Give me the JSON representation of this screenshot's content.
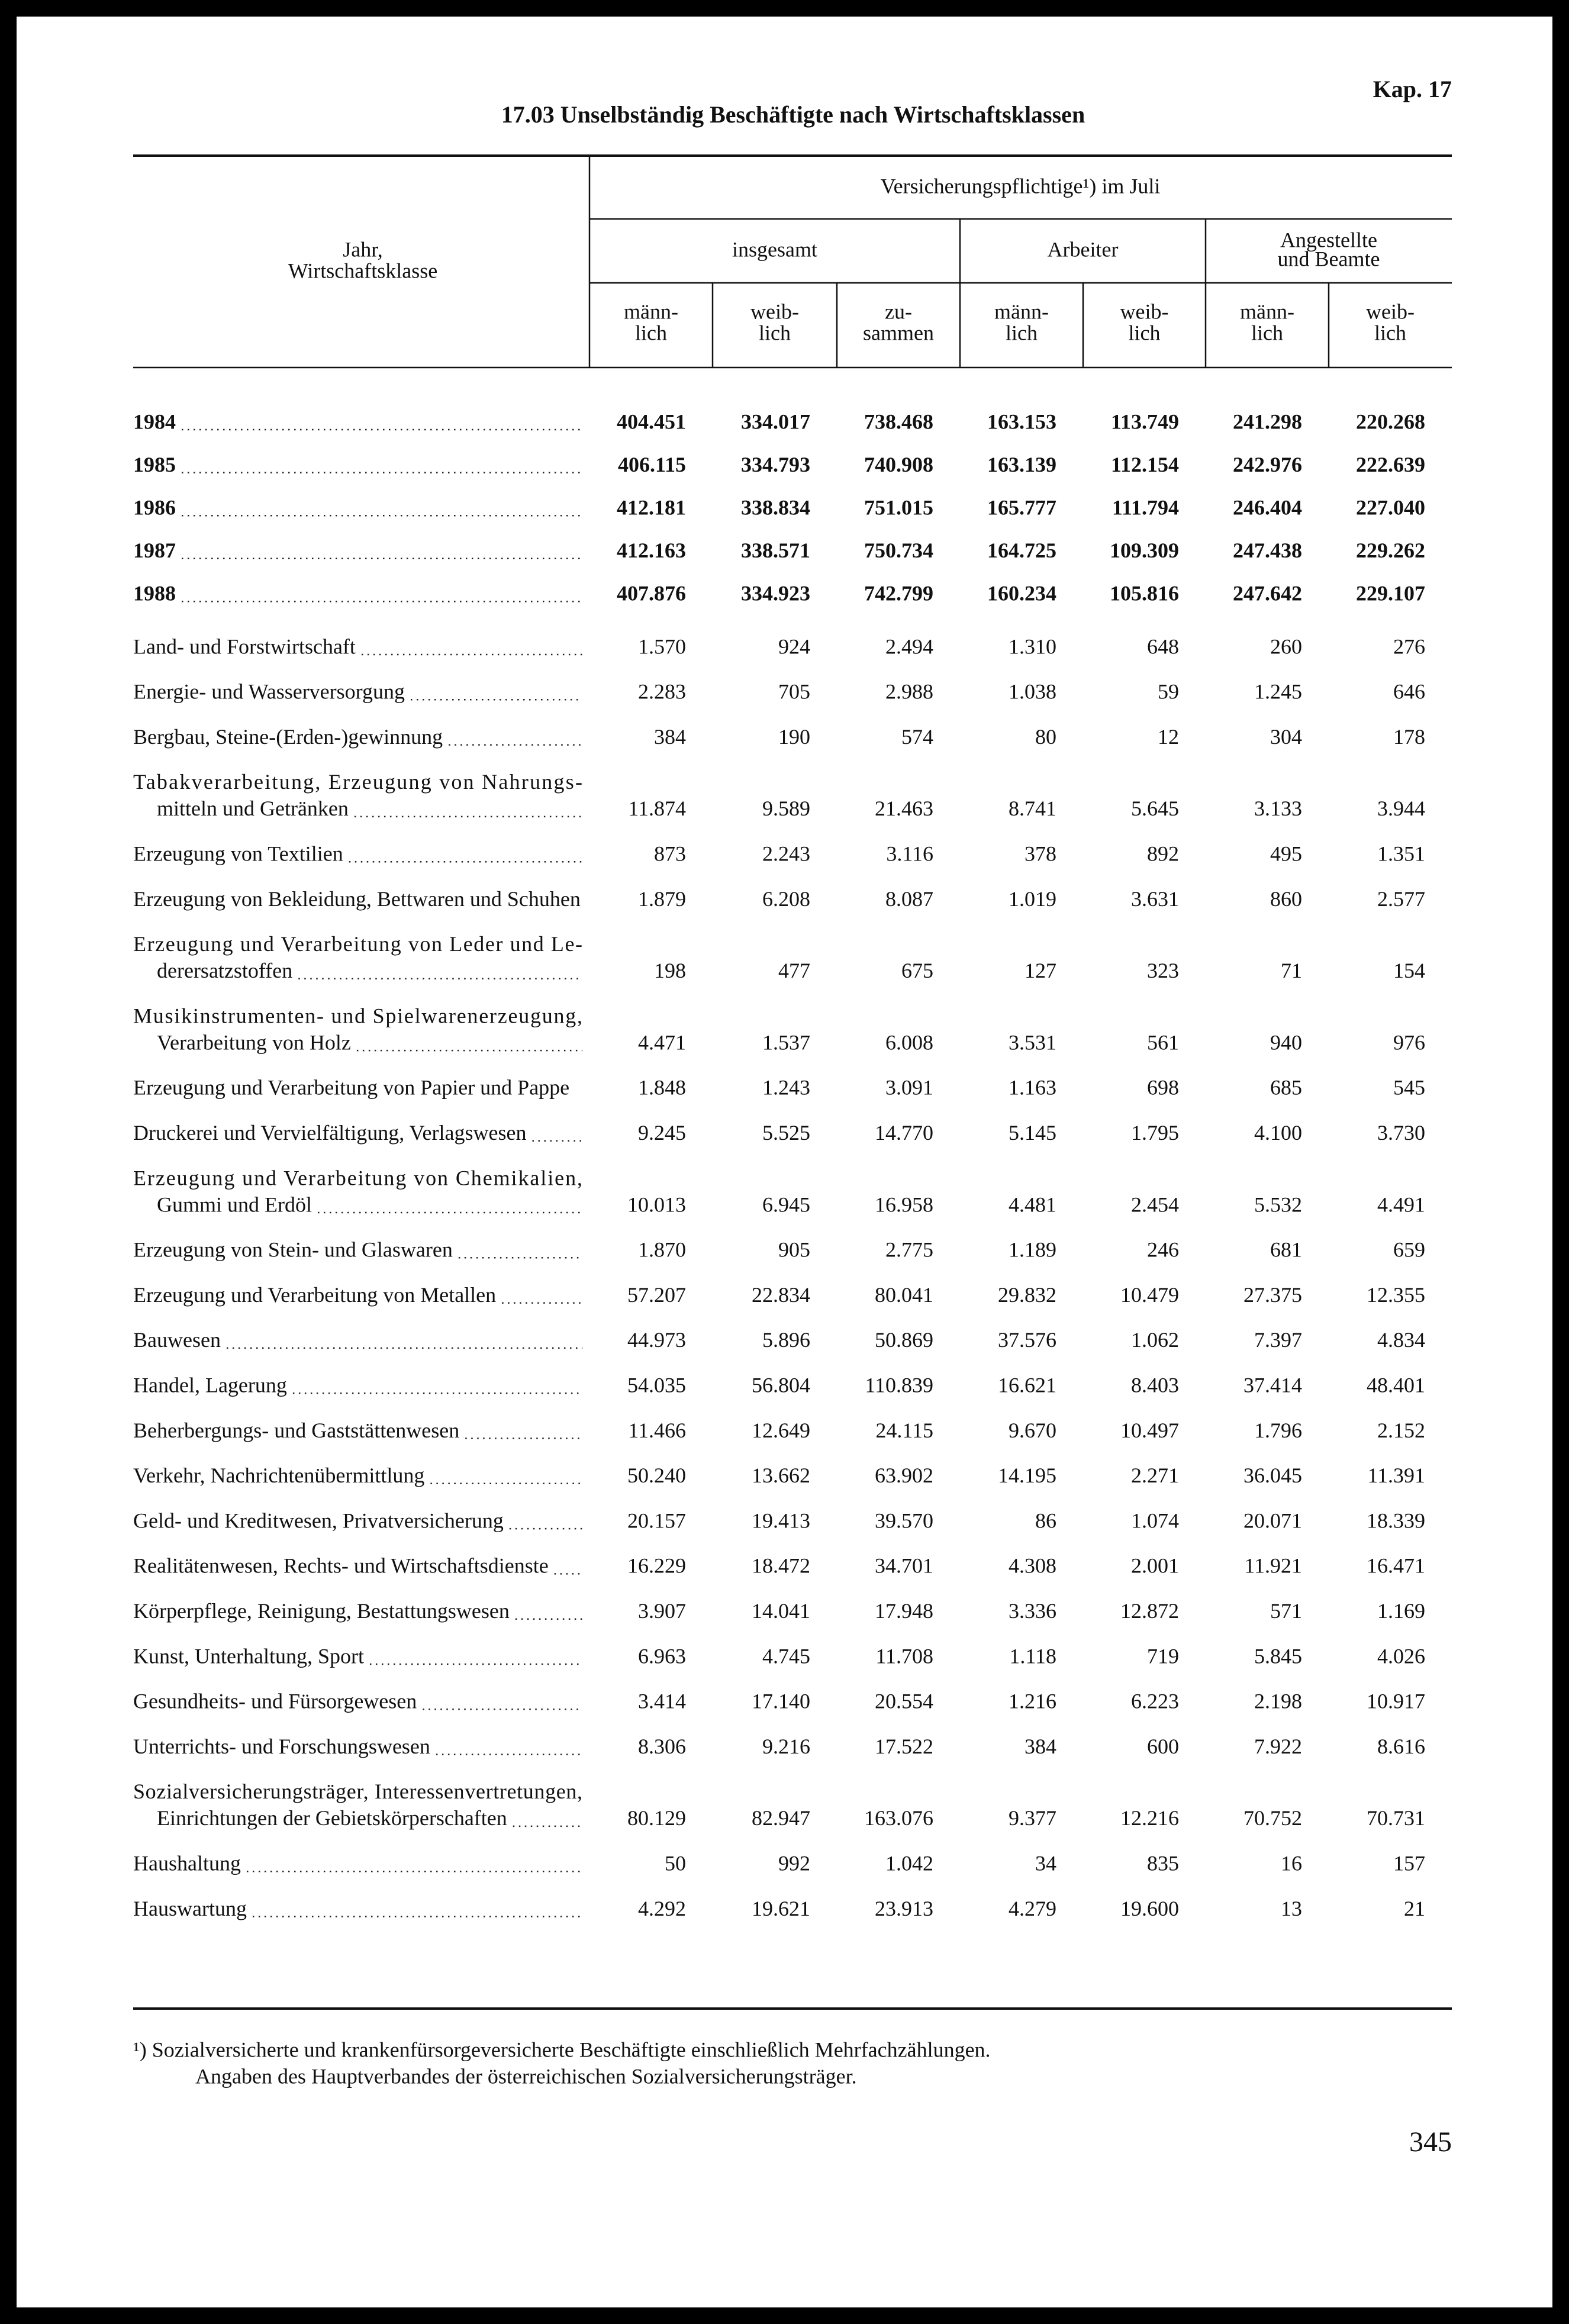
{
  "header": {
    "chapter": "Kap. 17",
    "title": "17.03 Unselbständig Beschäftigte nach Wirtschaftsklassen"
  },
  "table": {
    "stub_header": [
      "Jahr,",
      "Wirtschaftsklasse"
    ],
    "top_header": "Versicherungspflichtige¹) im Juli",
    "groups": [
      [
        "insgesamt"
      ],
      [
        "Arbeiter"
      ],
      [
        "Angestellte",
        "und Beamte"
      ]
    ],
    "columns": [
      [
        "männ-",
        "lich"
      ],
      [
        "weib-",
        "lich"
      ],
      [
        "zu-",
        "sammen"
      ],
      [
        "männ-",
        "lich"
      ],
      [
        "weib-",
        "lich"
      ],
      [
        "männ-",
        "lich"
      ],
      [
        "weib-",
        "lich"
      ]
    ],
    "year_rows": [
      {
        "label": [
          "1984"
        ],
        "values": [
          "404.451",
          "334.017",
          "738.468",
          "163.153",
          "113.749",
          "241.298",
          "220.268"
        ]
      },
      {
        "label": [
          "1985"
        ],
        "values": [
          "406.115",
          "334.793",
          "740.908",
          "163.139",
          "112.154",
          "242.976",
          "222.639"
        ]
      },
      {
        "label": [
          "1986"
        ],
        "values": [
          "412.181",
          "338.834",
          "751.015",
          "165.777",
          "111.794",
          "246.404",
          "227.040"
        ]
      },
      {
        "label": [
          "1987"
        ],
        "values": [
          "412.163",
          "338.571",
          "750.734",
          "164.725",
          "109.309",
          "247.438",
          "229.262"
        ]
      },
      {
        "label": [
          "1988"
        ],
        "values": [
          "407.876",
          "334.923",
          "742.799",
          "160.234",
          "105.816",
          "247.642",
          "229.107"
        ]
      }
    ],
    "class_rows": [
      {
        "label": [
          "Land- und Forstwirtschaft"
        ],
        "values": [
          "1.570",
          "924",
          "2.494",
          "1.310",
          "648",
          "260",
          "276"
        ]
      },
      {
        "label": [
          "Energie- und Wasserversorgung"
        ],
        "values": [
          "2.283",
          "705",
          "2.988",
          "1.038",
          "59",
          "1.245",
          "646"
        ]
      },
      {
        "label": [
          "Bergbau, Steine-(Erden-)gewinnung"
        ],
        "values": [
          "384",
          "190",
          "574",
          "80",
          "12",
          "304",
          "178"
        ]
      },
      {
        "label": [
          "Tabakverarbeitung, Erzeugung von Nahrungs-",
          "mitteln und Getränken"
        ],
        "values": [
          "11.874",
          "9.589",
          "21.463",
          "8.741",
          "5.645",
          "3.133",
          "3.944"
        ]
      },
      {
        "label": [
          "Erzeugung von Textilien"
        ],
        "values": [
          "873",
          "2.243",
          "3.116",
          "378",
          "892",
          "495",
          "1.351"
        ]
      },
      {
        "label": [
          "Erzeugung von Bekleidung, Bettwaren und Schuhen"
        ],
        "values": [
          "1.879",
          "6.208",
          "8.087",
          "1.019",
          "3.631",
          "860",
          "2.577"
        ]
      },
      {
        "label": [
          "Erzeugung und Verarbeitung von Leder und Le-",
          "derersatzstoffen"
        ],
        "values": [
          "198",
          "477",
          "675",
          "127",
          "323",
          "71",
          "154"
        ]
      },
      {
        "label": [
          "Musikinstrumenten- und Spielwarenerzeugung,",
          "Verarbeitung von Holz"
        ],
        "values": [
          "4.471",
          "1.537",
          "6.008",
          "3.531",
          "561",
          "940",
          "976"
        ]
      },
      {
        "label": [
          "Erzeugung und Verarbeitung von Papier und Pappe"
        ],
        "values": [
          "1.848",
          "1.243",
          "3.091",
          "1.163",
          "698",
          "685",
          "545"
        ]
      },
      {
        "label": [
          "Druckerei und Vervielfältigung, Verlagswesen"
        ],
        "values": [
          "9.245",
          "5.525",
          "14.770",
          "5.145",
          "1.795",
          "4.100",
          "3.730"
        ]
      },
      {
        "label": [
          "Erzeugung und Verarbeitung von Chemikalien,",
          "Gummi und Erdöl"
        ],
        "values": [
          "10.013",
          "6.945",
          "16.958",
          "4.481",
          "2.454",
          "5.532",
          "4.491"
        ]
      },
      {
        "label": [
          "Erzeugung von Stein- und Glaswaren"
        ],
        "values": [
          "1.870",
          "905",
          "2.775",
          "1.189",
          "246",
          "681",
          "659"
        ]
      },
      {
        "label": [
          "Erzeugung und Verarbeitung von Metallen"
        ],
        "values": [
          "57.207",
          "22.834",
          "80.041",
          "29.832",
          "10.479",
          "27.375",
          "12.355"
        ]
      },
      {
        "label": [
          "Bauwesen"
        ],
        "values": [
          "44.973",
          "5.896",
          "50.869",
          "37.576",
          "1.062",
          "7.397",
          "4.834"
        ]
      },
      {
        "label": [
          "Handel, Lagerung"
        ],
        "values": [
          "54.035",
          "56.804",
          "110.839",
          "16.621",
          "8.403",
          "37.414",
          "48.401"
        ]
      },
      {
        "label": [
          "Beherbergungs- und Gaststättenwesen"
        ],
        "values": [
          "11.466",
          "12.649",
          "24.115",
          "9.670",
          "10.497",
          "1.796",
          "2.152"
        ]
      },
      {
        "label": [
          "Verkehr, Nachrichtenübermittlung"
        ],
        "values": [
          "50.240",
          "13.662",
          "63.902",
          "14.195",
          "2.271",
          "36.045",
          "11.391"
        ]
      },
      {
        "label": [
          "Geld- und Kreditwesen, Privatversicherung"
        ],
        "values": [
          "20.157",
          "19.413",
          "39.570",
          "86",
          "1.074",
          "20.071",
          "18.339"
        ]
      },
      {
        "label": [
          "Realitätenwesen, Rechts- und Wirtschaftsdienste"
        ],
        "values": [
          "16.229",
          "18.472",
          "34.701",
          "4.308",
          "2.001",
          "11.921",
          "16.471"
        ]
      },
      {
        "label": [
          "Körperpflege, Reinigung, Bestattungswesen"
        ],
        "values": [
          "3.907",
          "14.041",
          "17.948",
          "3.336",
          "12.872",
          "571",
          "1.169"
        ]
      },
      {
        "label": [
          "Kunst, Unterhaltung, Sport"
        ],
        "values": [
          "6.963",
          "4.745",
          "11.708",
          "1.118",
          "719",
          "5.845",
          "4.026"
        ]
      },
      {
        "label": [
          "Gesundheits- und Fürsorgewesen"
        ],
        "values": [
          "3.414",
          "17.140",
          "20.554",
          "1.216",
          "6.223",
          "2.198",
          "10.917"
        ]
      },
      {
        "label": [
          "Unterrichts- und Forschungswesen"
        ],
        "values": [
          "8.306",
          "9.216",
          "17.522",
          "384",
          "600",
          "7.922",
          "8.616"
        ]
      },
      {
        "label": [
          "Sozialversicherungsträger, Interessenvertretungen,",
          "Einrichtungen der Gebietskörperschaften"
        ],
        "values": [
          "80.129",
          "82.947",
          "163.076",
          "9.377",
          "12.216",
          "70.752",
          "70.731"
        ]
      },
      {
        "label": [
          "Haushaltung"
        ],
        "values": [
          "50",
          "992",
          "1.042",
          "34",
          "835",
          "16",
          "157"
        ]
      },
      {
        "label": [
          "Hauswartung"
        ],
        "values": [
          "4.292",
          "19.621",
          "23.913",
          "4.279",
          "19.600",
          "13",
          "21"
        ]
      }
    ]
  },
  "footnote": [
    "¹) Sozialversicherte und krankenfürsorgeversicherte Beschäftigte einschließlich Mehrfachzählungen.",
    "Angaben des Hauptverbandes der österreichischen Sozialversicherungsträger."
  ],
  "page_number": "345"
}
